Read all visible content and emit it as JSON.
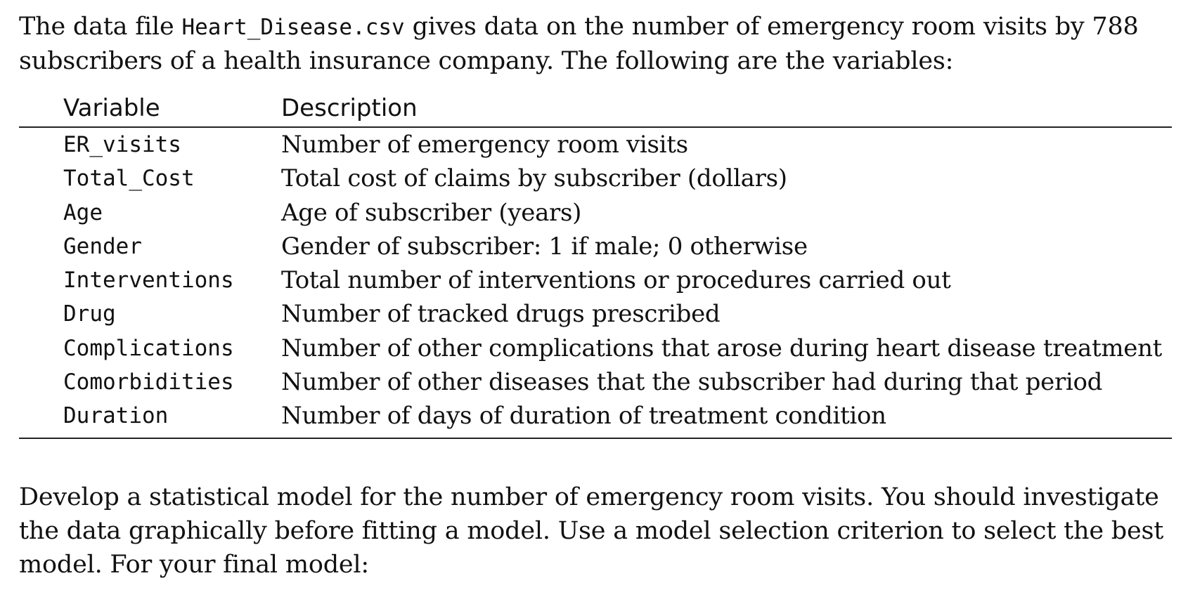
{
  "intro": {
    "part1": "The data file ",
    "filename": "Heart_Disease.csv",
    "part2": " gives data on the number of emergency room visits by 788 subscribers of a health insurance company. The following are the variables:"
  },
  "table": {
    "headers": {
      "variable": "Variable",
      "description": "Description"
    },
    "rows": [
      {
        "variable": "ER_visits",
        "description": "Number of emergency room visits"
      },
      {
        "variable": "Total_Cost",
        "description": "Total cost of claims by subscriber (dollars)"
      },
      {
        "variable": "Age",
        "description": "Age of subscriber (years)"
      },
      {
        "variable": "Gender",
        "description": "Gender of subscriber: 1 if male; 0 otherwise"
      },
      {
        "variable": "Interventions",
        "description": "Total number of interventions or procedures carried out"
      },
      {
        "variable": "Drug",
        "description": "Number of tracked drugs prescribed"
      },
      {
        "variable": "Complications",
        "description": "Number of other complications that arose during heart disease treatment"
      },
      {
        "variable": "Comorbidities",
        "description": "Number of other diseases that the subscriber had during that period"
      },
      {
        "variable": "Duration",
        "description": "Number of days of duration of treatment condition"
      }
    ]
  },
  "task": {
    "text": "Develop a statistical model for the number of emergency room visits. You should investigate the data graphically before fitting a model. Use a model selection criterion to select the best model. For your final model:"
  }
}
